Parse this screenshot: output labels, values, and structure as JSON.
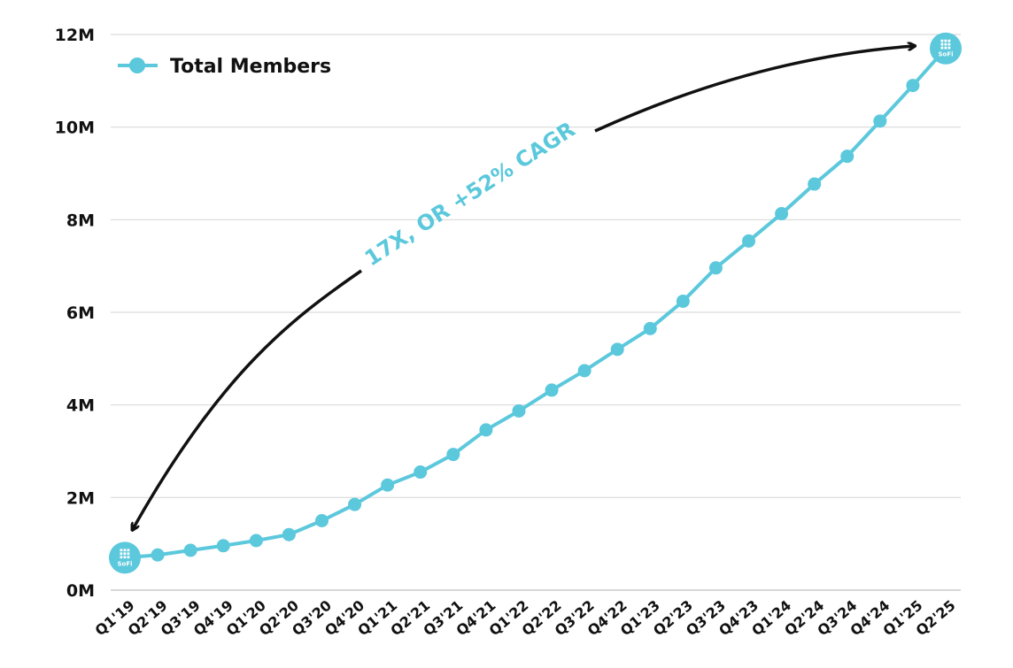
{
  "colors": {
    "series": "#5bc8dc",
    "grid": "#d9d9d9",
    "text": "#111111",
    "arrow": "#111111"
  },
  "logo": {
    "text": "SoFi",
    "icon": "sofi-logo-icon"
  },
  "annotation": {
    "text": "17X, OR +52% CAGR"
  },
  "chart_data": {
    "type": "line",
    "categories": [
      "Q1'19",
      "Q2'19",
      "Q3'19",
      "Q4'19",
      "Q1'20",
      "Q2'20",
      "Q3'20",
      "Q4'20",
      "Q1'21",
      "Q2'21",
      "Q3'21",
      "Q4'21",
      "Q1'22",
      "Q2'22",
      "Q3'22",
      "Q4'22",
      "Q1'23",
      "Q2'23",
      "Q3'23",
      "Q4'23",
      "Q1'24",
      "Q2'24",
      "Q3'24",
      "Q4'24",
      "Q1'25",
      "Q2'25"
    ],
    "series": [
      {
        "name": "Total Members",
        "values": [
          0.7,
          0.76,
          0.86,
          0.96,
          1.07,
          1.2,
          1.5,
          1.85,
          2.27,
          2.55,
          2.93,
          3.46,
          3.87,
          4.32,
          4.74,
          5.2,
          5.65,
          6.24,
          6.96,
          7.54,
          8.13,
          8.77,
          9.37,
          10.13,
          10.9,
          11.7
        ]
      }
    ],
    "y_ticks": [
      "0M",
      "2M",
      "4M",
      "6M",
      "8M",
      "10M",
      "12M"
    ],
    "ylim": [
      0,
      12
    ],
    "grid": true,
    "legend": "top-left",
    "xlabel": "",
    "ylabel": ""
  }
}
